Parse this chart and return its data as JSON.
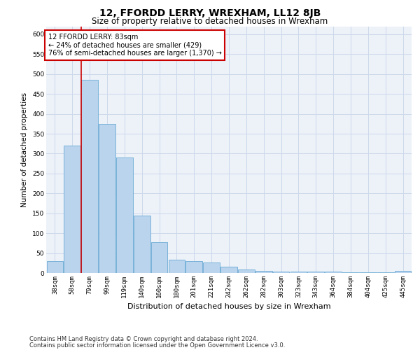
{
  "title": "12, FFORDD LERRY, WREXHAM, LL12 8JB",
  "subtitle": "Size of property relative to detached houses in Wrexham",
  "xlabel": "Distribution of detached houses by size in Wrexham",
  "ylabel": "Number of detached properties",
  "categories": [
    "38sqm",
    "58sqm",
    "79sqm",
    "99sqm",
    "119sqm",
    "140sqm",
    "160sqm",
    "180sqm",
    "201sqm",
    "221sqm",
    "242sqm",
    "262sqm",
    "282sqm",
    "303sqm",
    "323sqm",
    "343sqm",
    "364sqm",
    "384sqm",
    "404sqm",
    "425sqm",
    "445sqm"
  ],
  "values": [
    30,
    320,
    485,
    375,
    290,
    145,
    77,
    33,
    30,
    27,
    15,
    8,
    5,
    4,
    4,
    4,
    4,
    1,
    1,
    1,
    5
  ],
  "bar_color": "#bad4ee",
  "bar_edge_color": "#6aaad4",
  "grid_color": "#cdd8ea",
  "background_color": "#edf2f9",
  "property_sqm": 83,
  "property_label": "12 FFORDD LERRY: 83sqm",
  "smaller_pct": 24,
  "smaller_count": 429,
  "larger_pct": 76,
  "larger_count": "1,370",
  "annotation_box_color": "#ffffff",
  "annotation_box_edge_color": "#cc0000",
  "ylim": [
    0,
    620
  ],
  "yticks": [
    0,
    50,
    100,
    150,
    200,
    250,
    300,
    350,
    400,
    450,
    500,
    550,
    600
  ],
  "footer_line1": "Contains HM Land Registry data © Crown copyright and database right 2024.",
  "footer_line2": "Contains public sector information licensed under the Open Government Licence v3.0.",
  "title_fontsize": 10,
  "subtitle_fontsize": 8.5,
  "xlabel_fontsize": 8,
  "ylabel_fontsize": 7.5,
  "tick_fontsize": 6.5,
  "footer_fontsize": 6,
  "annotation_fontsize": 7
}
